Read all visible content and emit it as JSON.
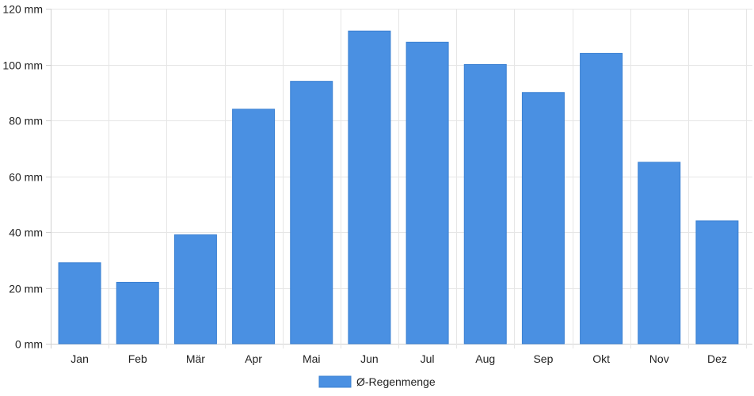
{
  "chart_data": {
    "type": "bar",
    "categories": [
      "Jan",
      "Feb",
      "Mär",
      "Apr",
      "Mai",
      "Jun",
      "Jul",
      "Aug",
      "Sep",
      "Okt",
      "Nov",
      "Dez"
    ],
    "series": [
      {
        "name": "Ø-Regenmenge",
        "values": [
          29,
          22,
          39,
          84,
          94,
          112,
          108,
          100,
          90,
          104,
          65,
          44
        ],
        "color": "#4a90e2"
      }
    ],
    "y_ticks": [
      0,
      20,
      40,
      60,
      80,
      100,
      120
    ],
    "y_unit": " mm",
    "ylim": [
      0,
      120
    ],
    "grid": true,
    "legend_position": "bottom-center"
  }
}
